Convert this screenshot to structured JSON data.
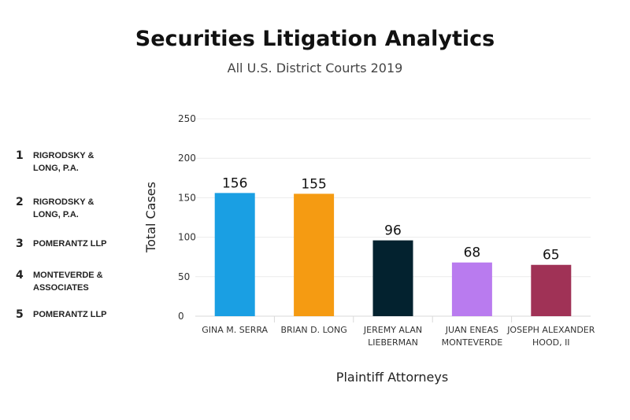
{
  "chart_data": {
    "type": "bar",
    "title": "Securities Litigation Analytics",
    "subtitle": "All U.S. District Courts 2019",
    "categories": [
      [
        "GINA M. SERRA"
      ],
      [
        "BRIAN D. LONG"
      ],
      [
        "JEREMY ALAN",
        "LIEBERMAN"
      ],
      [
        "JUAN ENEAS",
        "MONTEVERDE"
      ],
      [
        "JOSEPH ALEXANDER",
        "HOOD, II"
      ]
    ],
    "values": [
      156,
      155,
      96,
      68,
      65
    ],
    "bar_colors": [
      "#1a9fe3",
      "#f59b12",
      "#03222f",
      "#b97bef",
      "#a03256"
    ],
    "xlabel": "Plaintiff Attorneys",
    "ylabel": "Total Cases",
    "ylim": [
      0,
      250
    ],
    "yticks": [
      0,
      50,
      100,
      150,
      200,
      250
    ],
    "grid": true,
    "legend": "none"
  },
  "firms": [
    {
      "rank": "1",
      "name": "RIGRODSKY & LONG, P.A."
    },
    {
      "rank": "2",
      "name": "RIGRODSKY & LONG, P.A."
    },
    {
      "rank": "3",
      "name": "POMERANTZ LLP"
    },
    {
      "rank": "4",
      "name": "MONTEVERDE & ASSOCIATES"
    },
    {
      "rank": "5",
      "name": "POMERANTZ LLP"
    }
  ]
}
